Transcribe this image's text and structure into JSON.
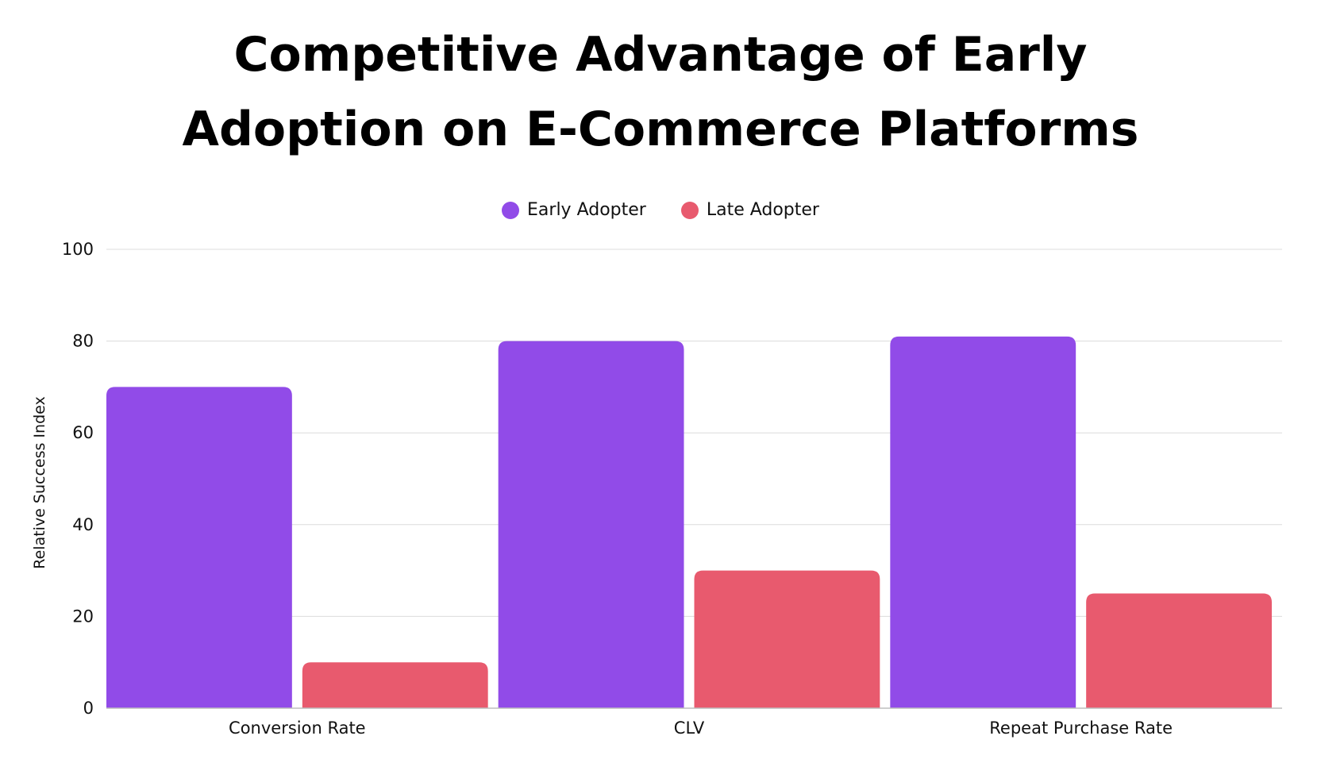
{
  "chart_data": {
    "type": "bar",
    "title": "Competitive Advantage of Early Adoption on E-Commerce Platforms",
    "xlabel": "",
    "ylabel": "Relative Success Index",
    "categories": [
      "Conversion Rate",
      "CLV",
      "Repeat Purchase Rate"
    ],
    "series": [
      {
        "name": "Early Adopter",
        "color": "#914BE8",
        "values": [
          70,
          80,
          81
        ]
      },
      {
        "name": "Late Adopter",
        "color": "#E85A6E",
        "values": [
          10,
          30,
          25
        ]
      }
    ],
    "ylim": [
      0,
      100
    ],
    "yticks": [
      0,
      20,
      40,
      60,
      80,
      100
    ],
    "grid": true,
    "legend_position": "top-center"
  }
}
